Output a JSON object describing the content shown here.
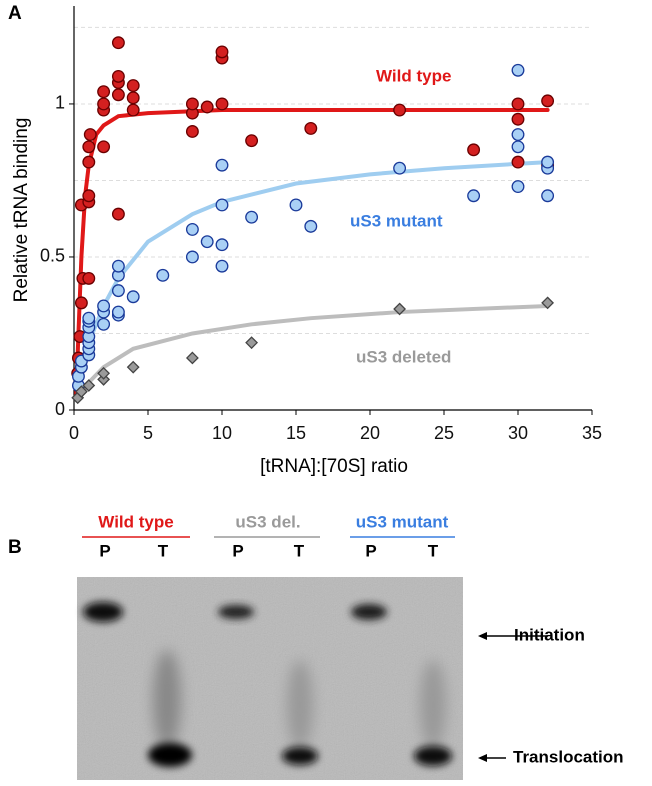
{
  "chart_data": {
    "type": "scatter",
    "panel_label": "A",
    "x_label": "[tRNA]:[70S] ratio",
    "y_label": "Relative tRNA binding",
    "xlim": [
      0,
      35
    ],
    "ylim": [
      0,
      1.32
    ],
    "xticks": [
      0,
      5,
      10,
      15,
      20,
      25,
      30,
      35
    ],
    "yticks": [
      0,
      0.5,
      1
    ],
    "grid_lines": [
      0.25,
      0.5,
      0.75,
      1,
      1.25
    ],
    "series": [
      {
        "name": "Wild type",
        "color": "#d42020",
        "edge": "#6a0000",
        "marker": "circle",
        "x": [
          0.25,
          0.3,
          0.4,
          0.5,
          0.6,
          0.5,
          1,
          1,
          1,
          1,
          1,
          1.1,
          2,
          2,
          2,
          2,
          3,
          3,
          3,
          3,
          3,
          4,
          4,
          4,
          8,
          8,
          8,
          9,
          10,
          10,
          10,
          12,
          16,
          22,
          27,
          30,
          30,
          30,
          32,
          32
        ],
        "values": [
          0.12,
          0.17,
          0.24,
          0.35,
          0.43,
          0.67,
          0.43,
          0.68,
          0.7,
          0.81,
          0.86,
          0.9,
          0.86,
          0.98,
          1.0,
          1.04,
          0.64,
          1.03,
          1.07,
          1.09,
          1.2,
          0.98,
          1.02,
          1.06,
          0.91,
          0.97,
          1.0,
          0.99,
          1.0,
          1.15,
          1.17,
          0.88,
          0.92,
          0.98,
          0.85,
          0.81,
          0.95,
          1.0,
          0.8,
          1.01
        ]
      },
      {
        "name": "uS3 mutant",
        "color": "#a9d0f5",
        "edge": "#1a3a9a",
        "marker": "circle",
        "x": [
          0.3,
          0.3,
          0.5,
          0.5,
          1,
          1,
          1,
          1,
          1,
          1,
          1,
          2,
          2,
          2,
          3,
          3,
          3,
          3,
          3,
          4,
          6,
          8,
          8,
          9,
          10,
          10,
          10,
          10,
          12,
          15,
          16,
          22,
          27,
          30,
          30,
          30,
          30,
          32,
          32,
          32
        ],
        "values": [
          0.08,
          0.11,
          0.14,
          0.16,
          0.18,
          0.2,
          0.22,
          0.24,
          0.27,
          0.29,
          0.3,
          0.28,
          0.32,
          0.34,
          0.31,
          0.32,
          0.39,
          0.44,
          0.47,
          0.37,
          0.44,
          0.5,
          0.59,
          0.55,
          0.47,
          0.54,
          0.67,
          0.8,
          0.63,
          0.67,
          0.6,
          0.79,
          0.7,
          0.73,
          0.86,
          0.9,
          1.11,
          0.7,
          0.79,
          0.81
        ]
      },
      {
        "name": "uS3 deleted",
        "color": "#9a9a9a",
        "edge": "#444444",
        "marker": "diamond",
        "x": [
          0.25,
          0.5,
          1,
          2,
          2,
          4,
          8,
          12,
          22,
          32
        ],
        "values": [
          0.04,
          0.06,
          0.08,
          0.1,
          0.12,
          0.14,
          0.17,
          0.22,
          0.33,
          0.35
        ]
      }
    ],
    "fits": [
      {
        "color": "#e01818",
        "x": [
          0.15,
          0.3,
          0.5,
          0.75,
          1,
          1.5,
          2,
          3,
          5,
          10,
          20,
          32
        ],
        "values": [
          0.05,
          0.25,
          0.5,
          0.7,
          0.8,
          0.9,
          0.93,
          0.96,
          0.97,
          0.98,
          0.98,
          0.98
        ]
      },
      {
        "color": "#9fcdf0",
        "x": [
          0.2,
          1,
          2,
          3,
          5,
          8,
          10,
          15,
          20,
          25,
          32
        ],
        "values": [
          0.08,
          0.22,
          0.34,
          0.43,
          0.55,
          0.64,
          0.68,
          0.74,
          0.77,
          0.79,
          0.81
        ]
      },
      {
        "color": "#bdbdbd",
        "x": [
          0.2,
          1,
          2,
          4,
          8,
          12,
          16,
          22,
          32
        ],
        "values": [
          0.03,
          0.09,
          0.14,
          0.2,
          0.25,
          0.28,
          0.3,
          0.32,
          0.34
        ]
      }
    ]
  },
  "gel": {
    "panel_label": "B",
    "groups": [
      "Wild type",
      "uS3 del.",
      "uS3 mutant"
    ],
    "lanes": [
      "P",
      "T",
      "P",
      "T",
      "P",
      "T"
    ],
    "bands": [
      "Initiation",
      "Translocation"
    ]
  }
}
